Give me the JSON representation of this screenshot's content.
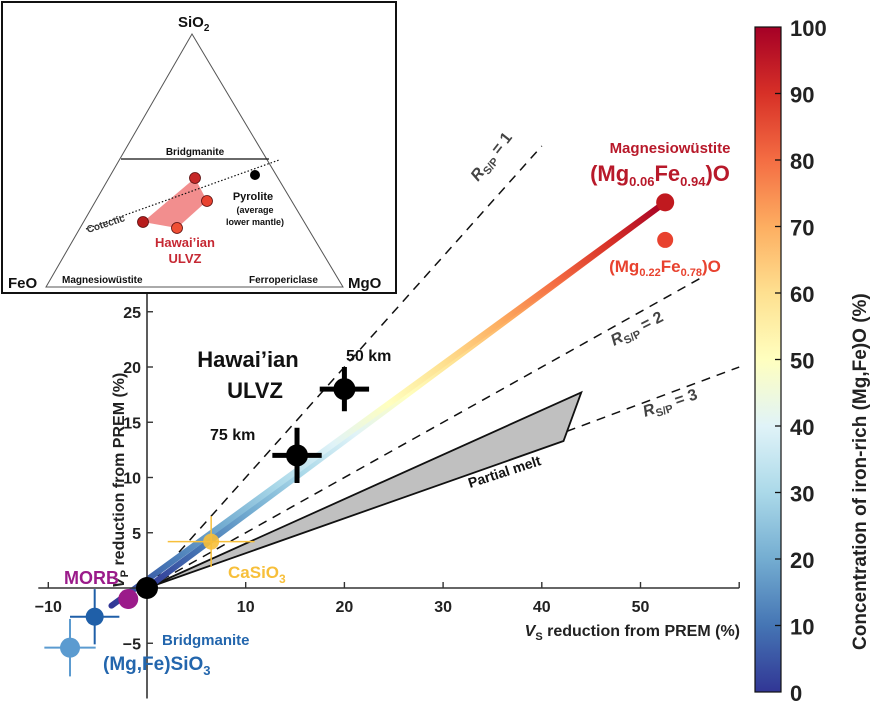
{
  "chart_data": {
    "type": "scatter",
    "title": "",
    "xlabel": "V_S reduction from PREM (%)",
    "xlabel_main": "V",
    "xlabel_sub": "S",
    "xlabel_rest": " reduction from PREM (%)",
    "ylabel_main": "V",
    "ylabel_sub": "P",
    "ylabel_rest": " reduction from PREM (%)",
    "xlim": [
      -10,
      60
    ],
    "ylim": [
      -8,
      27
    ],
    "xticks": [
      -10,
      10,
      20,
      30,
      40,
      50
    ],
    "xtick_labels": [
      "−10",
      "10",
      "20",
      "30",
      "40",
      "50"
    ],
    "yticks": [
      -5,
      5,
      10,
      15,
      20,
      25
    ],
    "ytick_labels": [
      "−5",
      "5",
      "10",
      "15",
      "20",
      "25"
    ],
    "grid": false,
    "ratio_lines": [
      {
        "label_main": "R",
        "label_sub": "S/P",
        "label_rest": " = 1",
        "slope": 1,
        "x_end": 40
      },
      {
        "label_main": "R",
        "label_sub": "S/P",
        "label_rest": " = 2",
        "slope": 0.5,
        "x_end": 56
      },
      {
        "label_main": "R",
        "label_sub": "S/P",
        "label_rest": " = 3",
        "slope": 0.3333,
        "x_end": 60
      }
    ],
    "partial_melt": {
      "label": "Partial melt",
      "polygon": [
        [
          0,
          0
        ],
        [
          44,
          17.7
        ],
        [
          42.2,
          13.3
        ]
      ],
      "color": "#c0c0c0"
    },
    "mixing_lines": [
      {
        "name": "mix-upper",
        "from": [
          0,
          0
        ],
        "to": [
          52.5,
          34.9
        ]
      },
      {
        "name": "mix-lower",
        "from": [
          -3.6,
          -1.6
        ],
        "to": [
          52.5,
          34.9
        ]
      }
    ],
    "points": [
      {
        "name": "hawaiian-50km",
        "label": "50 km",
        "x": 20,
        "y": 18,
        "xerr": 2.5,
        "yerr": 2,
        "color": "#000000"
      },
      {
        "name": "hawaiian-75km",
        "label": "75 km",
        "x": 15.2,
        "y": 12,
        "xerr": 2.5,
        "yerr": 2.5,
        "color": "#000000"
      },
      {
        "name": "origin",
        "label": "",
        "x": 0,
        "y": 0,
        "xerr": 0,
        "yerr": 0,
        "color": "#000000"
      },
      {
        "name": "morb",
        "label": "MORB",
        "x": -1.9,
        "y": -1,
        "xerr": 0,
        "yerr": 0,
        "color": "#9b1b8a"
      },
      {
        "name": "bridgmanite-dark",
        "label": "",
        "x": -5.3,
        "y": -2.6,
        "xerr": 2.5,
        "yerr": 2.5,
        "color": "#1f5fa8"
      },
      {
        "name": "bridgmanite-light",
        "label": "",
        "x": -7.8,
        "y": -5.4,
        "xerr": 2.6,
        "yerr": 2.6,
        "color": "#5b9bd0"
      },
      {
        "name": "casio3",
        "label": "CaSiO3",
        "x": 6.5,
        "y": 4.2,
        "xerr": 4.4,
        "yerr": 2.3,
        "color": "#f7bf3a"
      },
      {
        "name": "mw-006",
        "label": "(Mg0.06Fe0.94)O",
        "x": 52.5,
        "y": 34.9,
        "xerr": 0.5,
        "yerr": 0.5,
        "color": "#c0191f"
      },
      {
        "name": "mw-022",
        "label": "(Mg0.22Fe0.78)O",
        "x": 52.5,
        "y": 31.5,
        "xerr": 0.5,
        "yerr": 0.5,
        "color": "#e8422f"
      }
    ],
    "annotations": {
      "hawaiian_title_1": "Hawai’ian",
      "hawaiian_title_2": "ULVZ",
      "km50": "50 km",
      "km75": "75 km",
      "morb": "MORB",
      "casio3_main": "CaSiO",
      "casio3_sub": "3",
      "bridgmanite": "Bridgmanite",
      "bridgmanite_formula_main": "(Mg,Fe)SiO",
      "bridgmanite_formula_sub": "3",
      "magnesiowustite": "Magnesiowüstite",
      "mw006_a": "(Mg",
      "mw006_b": "0.06",
      "mw006_c": "Fe",
      "mw006_d": "0.94",
      "mw006_e": ")O",
      "mw022_a": "(Mg",
      "mw022_b": "0.22",
      "mw022_c": "Fe",
      "mw022_d": "0.78",
      "mw022_e": ")O"
    },
    "colorbar": {
      "label": "Concentration of iron-rich (Mg,Fe)O (%)",
      "range": [
        0,
        100
      ],
      "ticks": [
        0,
        10,
        20,
        30,
        40,
        50,
        60,
        70,
        80,
        90,
        100
      ],
      "tick_labels": [
        "0",
        "10",
        "20",
        "30",
        "40",
        "50",
        "60",
        "70",
        "80",
        "90",
        "100"
      ],
      "colormap": [
        "#313695",
        "#4575b4",
        "#74add1",
        "#abd9e9",
        "#e0f3f8",
        "#ffffbf",
        "#fee090",
        "#fdae61",
        "#f46d43",
        "#d73027",
        "#a50026"
      ]
    },
    "inset": {
      "type": "ternary",
      "apex_top": "SiO",
      "apex_top_sub": "2",
      "apex_left": "FeO",
      "apex_right": "MgO",
      "field_upper": "Bridgmanite",
      "field_lower_left": "Magnesiowüstite",
      "field_lower_right": "Ferropericlase",
      "cotectic": "Cotectic",
      "pyrolite": "Pyrolite",
      "pyrolite_note_1": "(average",
      "pyrolite_note_2": "lower mantle)",
      "ulvz_1": "Hawai’ian",
      "ulvz_2": "ULVZ"
    }
  }
}
